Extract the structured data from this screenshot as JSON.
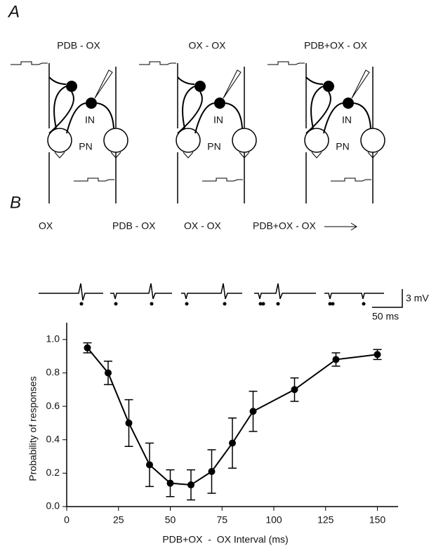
{
  "panel_a": {
    "label": "A",
    "diagrams": [
      {
        "title": "PDB - OX",
        "interneuron": "IN",
        "pyramidal": "PN"
      },
      {
        "title": "OX - OX",
        "interneuron": "IN",
        "pyramidal": "PN"
      },
      {
        "title": "PDB+OX - OX",
        "interneuron": "IN",
        "pyramidal": "PN"
      }
    ]
  },
  "panel_b": {
    "label": "B",
    "trace_labels": [
      "OX",
      "PDB - OX",
      "OX - OX",
      "PDB+OX - OX"
    ],
    "amplitude_scale": "3 mV",
    "time_scale": "50 ms"
  },
  "chart_data": {
    "type": "line",
    "x_label": "PDB+OX  -  OX Interval (ms)",
    "y_label": "Probability of responses",
    "x": [
      10,
      20,
      30,
      40,
      50,
      60,
      70,
      80,
      90,
      110,
      130,
      150
    ],
    "series": [
      {
        "color": "#000000",
        "values": [
          0.95,
          0.8,
          0.5,
          0.25,
          0.14,
          0.13,
          0.21,
          0.38,
          0.57,
          0.7,
          0.88,
          0.91
        ],
        "errors": [
          0.03,
          0.07,
          0.14,
          0.13,
          0.08,
          0.09,
          0.13,
          0.15,
          0.12,
          0.07,
          0.04,
          0.03
        ]
      }
    ],
    "xlim": [
      0,
      160
    ],
    "xticks": [
      0,
      25,
      50,
      75,
      100,
      125,
      150
    ],
    "ylim": [
      0,
      1.1
    ],
    "yticks": [
      {
        "value": 0,
        "label": "0.0"
      },
      0.2,
      0.4,
      0.6,
      0.8,
      {
        "value": 1,
        "label": "1.0"
      }
    ]
  }
}
